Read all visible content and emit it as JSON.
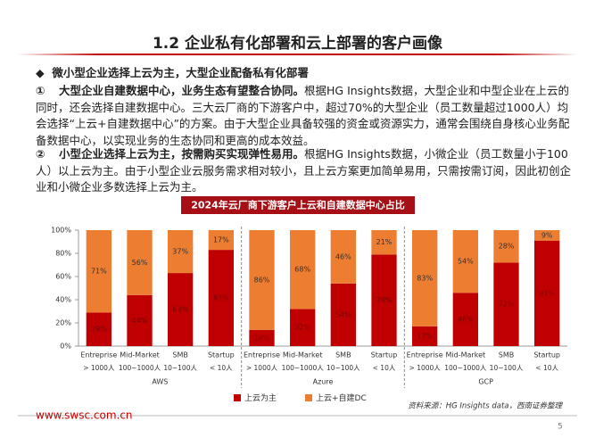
{
  "header": {
    "title": "1.2 企业私有化部署和云上部署的客户画像"
  },
  "bullet": "微小型企业选择上云为主，大型企业配备私有化部署",
  "points": [
    {
      "marker": "①",
      "bold": "大型企业自建数据中心，业务生态有望整合协同。",
      "text": "根据HG Insights数据，大型企业和中型企业在上云的同时，还会选择自建数据中心。三大云厂商的下游客户中，超过70%的大型企业（员工数量超过1000人）均会选择“上云+自建数据中心”的方案。由于大型企业具备较强的资金或资源实力，通常会围绕自身核心业务配备数据中心，以实现业务的生态协同和更高的成本效益。"
    },
    {
      "marker": "②",
      "bold": "小型企业选择上云为主，按需购买实现弹性易用。",
      "text": "根据HG Insights数据，小微企业（员工数量小于100人）以上云为主。由于小型企业云服务需求相对较小，且上云方案更加简单易用，只需按需订阅，因此初创企业和小微企业多数选择上云为主。"
    }
  ],
  "chart_data": {
    "type": "stacked_bar",
    "title": "2024年云厂商下游客户上云和自建数据中心占比",
    "categories": [
      "Entreprise",
      "Mid-Market",
      "SMB",
      "Startup",
      "Entreprise",
      "Mid-Market",
      "SMB",
      "Startup",
      "Entreprise",
      "Mid-Market",
      "SMB",
      "Startup"
    ],
    "sublabels": [
      "> 1000人",
      "100~1000人",
      "10~100人",
      "< 10人",
      "> 1000人",
      "100~1000人",
      "10~100人",
      "< 10人",
      "> 1000人",
      "100~1000人",
      "10~100人",
      "< 10人"
    ],
    "groups": [
      "AWS",
      "Azure",
      "GCP"
    ],
    "series": [
      {
        "name": "上云为主",
        "color": "#c00000",
        "values": [
          29,
          44,
          63,
          83,
          14,
          32,
          54,
          79,
          17,
          46,
          72,
          91
        ],
        "value_labels": [
          "29%",
          "44%",
          "63%",
          "83%",
          "14%",
          "32%",
          "54%",
          "79%",
          "17%",
          "46%",
          "72%",
          "91%"
        ]
      },
      {
        "name": "上云+自建DC",
        "color": "#ed7d31",
        "values": [
          71,
          56,
          37,
          17,
          86,
          68,
          46,
          21,
          83,
          54,
          28,
          9
        ],
        "value_labels": [
          "71%",
          "56%",
          "37%",
          "17%",
          "86%",
          "68%",
          "46%",
          "21%",
          "83%",
          "54%",
          "28%",
          "9%"
        ]
      }
    ],
    "ylim": [
      0,
      100
    ],
    "yticks": [
      {
        "value": 0,
        "label": "0%"
      },
      {
        "value": 20,
        "label": "20%"
      },
      {
        "value": 40,
        "label": "40%"
      },
      {
        "value": 60,
        "label": "60%"
      },
      {
        "value": 80,
        "label": "80%"
      },
      {
        "value": 100,
        "label": "100%"
      }
    ],
    "grid": false,
    "source": "资料来源：HG Insights data，西南证券整理"
  },
  "footer": {
    "url": "www.swsc.com.cn",
    "page": "5"
  }
}
